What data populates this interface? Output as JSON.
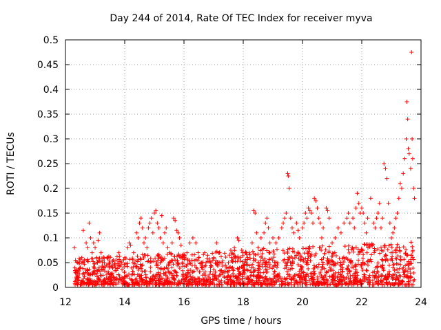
{
  "chart_data": {
    "type": "scatter",
    "title": "Day 244 of 2014, Rate Of TEC Index for receiver myva",
    "xlabel": "GPS time / hours",
    "ylabel": "ROTI / TECUs",
    "xlim": [
      12,
      24
    ],
    "ylim": [
      0,
      0.5
    ],
    "x_ticks": [
      12,
      14,
      16,
      18,
      20,
      22,
      24
    ],
    "x_tick_labels": [
      "12",
      "14",
      "16",
      "18",
      "20",
      "22",
      "24"
    ],
    "y_ticks": [
      0,
      0.05,
      0.1,
      0.15,
      0.2,
      0.25,
      0.3,
      0.35,
      0.4,
      0.45,
      0.5
    ],
    "y_tick_labels": [
      "0",
      "0.05",
      "0.1",
      "0.15",
      "0.2",
      "0.25",
      "0.3",
      "0.35",
      "0.4",
      "0.45",
      "0.5"
    ],
    "grid": true,
    "marker": "+",
    "color": "#ff0000",
    "series": [
      {
        "name": "ROTI",
        "points": [
          [
            12.3,
            0.08
          ],
          [
            12.35,
            0.03
          ],
          [
            12.4,
            0.05
          ],
          [
            12.45,
            0.02
          ],
          [
            12.5,
            0.04
          ],
          [
            12.55,
            0.06
          ],
          [
            12.6,
            0.115
          ],
          [
            12.7,
            0.09
          ],
          [
            12.75,
            0.08
          ],
          [
            12.8,
            0.13
          ],
          [
            12.85,
            0.1
          ],
          [
            12.9,
            0.07
          ],
          [
            12.95,
            0.09
          ],
          [
            13.0,
            0.08
          ],
          [
            13.05,
            0.06
          ],
          [
            13.1,
            0.095
          ],
          [
            13.15,
            0.11
          ],
          [
            13.2,
            0.07
          ],
          [
            13.25,
            0.05
          ],
          [
            13.3,
            0.04
          ],
          [
            13.4,
            0.06
          ],
          [
            13.5,
            0.05
          ],
          [
            13.6,
            0.04
          ],
          [
            13.7,
            0.055
          ],
          [
            13.8,
            0.07
          ],
          [
            13.9,
            0.05
          ],
          [
            14.0,
            0.06
          ],
          [
            14.1,
            0.08
          ],
          [
            14.15,
            0.09
          ],
          [
            14.2,
            0.085
          ],
          [
            14.3,
            0.07
          ],
          [
            14.4,
            0.11
          ],
          [
            14.45,
            0.1
          ],
          [
            14.5,
            0.13
          ],
          [
            14.55,
            0.14
          ],
          [
            14.6,
            0.12
          ],
          [
            14.65,
            0.09
          ],
          [
            14.7,
            0.1
          ],
          [
            14.75,
            0.08
          ],
          [
            14.8,
            0.12
          ],
          [
            14.85,
            0.13
          ],
          [
            14.9,
            0.14
          ],
          [
            14.95,
            0.11
          ],
          [
            15.0,
            0.15
          ],
          [
            15.05,
            0.155
          ],
          [
            15.1,
            0.13
          ],
          [
            15.15,
            0.12
          ],
          [
            15.2,
            0.1
          ],
          [
            15.25,
            0.145
          ],
          [
            15.3,
            0.09
          ],
          [
            15.35,
            0.11
          ],
          [
            15.4,
            0.12
          ],
          [
            15.45,
            0.08
          ],
          [
            15.5,
            0.07
          ],
          [
            15.6,
            0.09
          ],
          [
            15.65,
            0.14
          ],
          [
            15.7,
            0.135
          ],
          [
            15.75,
            0.115
          ],
          [
            15.8,
            0.11
          ],
          [
            15.85,
            0.1
          ],
          [
            15.9,
            0.085
          ],
          [
            16.0,
            0.06
          ],
          [
            16.1,
            0.07
          ],
          [
            16.2,
            0.09
          ],
          [
            16.3,
            0.1
          ],
          [
            16.4,
            0.09
          ],
          [
            16.5,
            0.06
          ],
          [
            16.6,
            0.05
          ],
          [
            16.7,
            0.07
          ],
          [
            16.8,
            0.065
          ],
          [
            16.9,
            0.05
          ],
          [
            17.0,
            0.06
          ],
          [
            17.1,
            0.09
          ],
          [
            17.2,
            0.07
          ],
          [
            17.3,
            0.05
          ],
          [
            17.4,
            0.045
          ],
          [
            17.5,
            0.05
          ],
          [
            17.6,
            0.06
          ],
          [
            17.7,
            0.08
          ],
          [
            17.8,
            0.1
          ],
          [
            17.85,
            0.095
          ],
          [
            17.9,
            0.06
          ],
          [
            18.0,
            0.04
          ],
          [
            18.1,
            0.05
          ],
          [
            18.2,
            0.07
          ],
          [
            18.3,
            0.09
          ],
          [
            18.35,
            0.155
          ],
          [
            18.4,
            0.15
          ],
          [
            18.45,
            0.11
          ],
          [
            18.5,
            0.08
          ],
          [
            18.6,
            0.1
          ],
          [
            18.7,
            0.11
          ],
          [
            18.75,
            0.13
          ],
          [
            18.8,
            0.14
          ],
          [
            18.85,
            0.12
          ],
          [
            18.9,
            0.09
          ],
          [
            19.0,
            0.1
          ],
          [
            19.1,
            0.09
          ],
          [
            19.2,
            0.1
          ],
          [
            19.3,
            0.12
          ],
          [
            19.35,
            0.13
          ],
          [
            19.4,
            0.14
          ],
          [
            19.45,
            0.15
          ],
          [
            19.5,
            0.23
          ],
          [
            19.52,
            0.225
          ],
          [
            19.55,
            0.2
          ],
          [
            19.6,
            0.14
          ],
          [
            19.65,
            0.12
          ],
          [
            19.7,
            0.11
          ],
          [
            19.8,
            0.13
          ],
          [
            19.85,
            0.115
          ],
          [
            19.9,
            0.1
          ],
          [
            20.0,
            0.12
          ],
          [
            20.05,
            0.13
          ],
          [
            20.1,
            0.15
          ],
          [
            20.15,
            0.14
          ],
          [
            20.2,
            0.16
          ],
          [
            20.25,
            0.155
          ],
          [
            20.3,
            0.15
          ],
          [
            20.35,
            0.13
          ],
          [
            20.4,
            0.18
          ],
          [
            20.45,
            0.175
          ],
          [
            20.5,
            0.16
          ],
          [
            20.55,
            0.14
          ],
          [
            20.6,
            0.13
          ],
          [
            20.65,
            0.1
          ],
          [
            20.7,
            0.12
          ],
          [
            20.8,
            0.16
          ],
          [
            20.85,
            0.155
          ],
          [
            20.9,
            0.14
          ],
          [
            21.0,
            0.09
          ],
          [
            21.1,
            0.1
          ],
          [
            21.2,
            0.12
          ],
          [
            21.3,
            0.11
          ],
          [
            21.4,
            0.13
          ],
          [
            21.5,
            0.14
          ],
          [
            21.55,
            0.15
          ],
          [
            21.6,
            0.13
          ],
          [
            21.7,
            0.14
          ],
          [
            21.75,
            0.12
          ],
          [
            21.8,
            0.16
          ],
          [
            21.85,
            0.19
          ],
          [
            21.9,
            0.17
          ],
          [
            21.95,
            0.15
          ],
          [
            22.0,
            0.16
          ],
          [
            22.05,
            0.15
          ],
          [
            22.1,
            0.13
          ],
          [
            22.15,
            0.11
          ],
          [
            22.2,
            0.14
          ],
          [
            22.3,
            0.18
          ],
          [
            22.4,
            0.13
          ],
          [
            22.45,
            0.12
          ],
          [
            22.5,
            0.14
          ],
          [
            22.55,
            0.15
          ],
          [
            22.6,
            0.17
          ],
          [
            22.65,
            0.12
          ],
          [
            22.7,
            0.14
          ],
          [
            22.75,
            0.25
          ],
          [
            22.8,
            0.24
          ],
          [
            22.85,
            0.22
          ],
          [
            22.9,
            0.17
          ],
          [
            22.95,
            0.13
          ],
          [
            23.0,
            0.1
          ],
          [
            23.05,
            0.11
          ],
          [
            23.1,
            0.12
          ],
          [
            23.15,
            0.14
          ],
          [
            23.2,
            0.15
          ],
          [
            23.25,
            0.18
          ],
          [
            23.3,
            0.21
          ],
          [
            23.35,
            0.2
          ],
          [
            23.4,
            0.23
          ],
          [
            23.45,
            0.26
          ],
          [
            23.5,
            0.3
          ],
          [
            23.52,
            0.375
          ],
          [
            23.55,
            0.34
          ],
          [
            23.57,
            0.28
          ],
          [
            23.6,
            0.27
          ],
          [
            23.65,
            0.24
          ],
          [
            23.68,
            0.475
          ],
          [
            23.7,
            0.3
          ],
          [
            23.72,
            0.26
          ],
          [
            23.75,
            0.2
          ],
          [
            23.78,
            0.18
          ]
        ],
        "baseline_band": [
          0.005,
          0.06
        ]
      }
    ]
  }
}
